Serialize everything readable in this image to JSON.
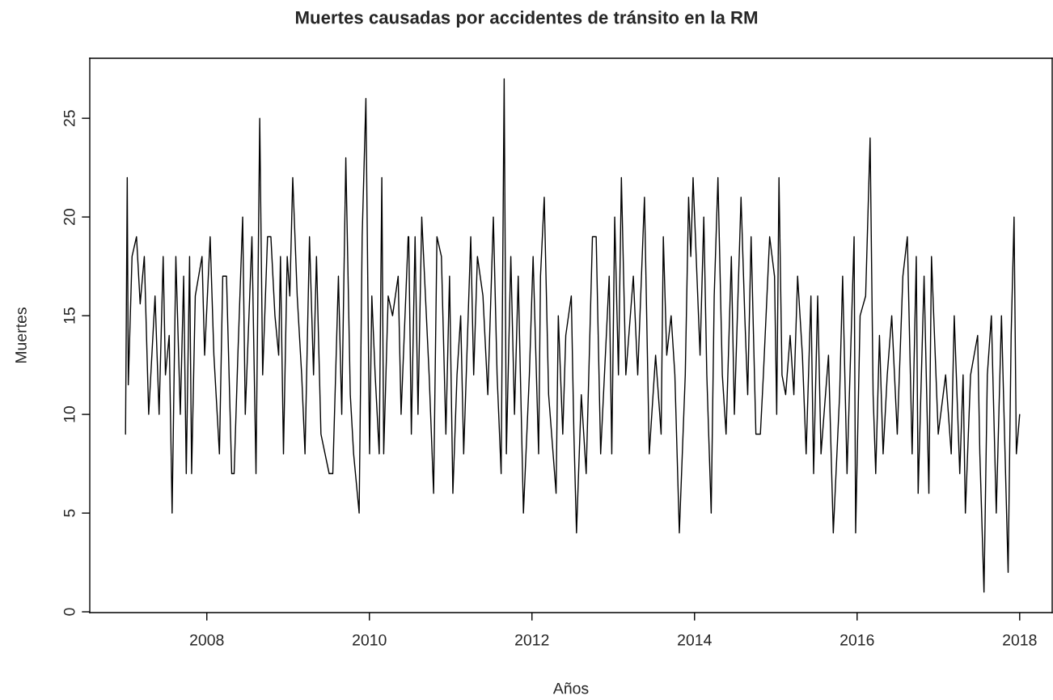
{
  "chart_data": {
    "type": "line",
    "title": "Muertes causadas por accidentes de tránsito en la RM",
    "xlabel": "Años",
    "ylabel": "Muertes",
    "x": [
      2007.0,
      2007.021,
      2007.034,
      2007.08,
      2007.135,
      2007.18,
      2007.231,
      2007.285,
      2007.363,
      2007.413,
      2007.463,
      2007.491,
      2007.537,
      2007.573,
      2007.619,
      2007.674,
      2007.715,
      2007.747,
      2007.788,
      2007.813,
      2007.858,
      2007.941,
      2007.973,
      2008.041,
      2008.087,
      2008.155,
      2008.196,
      2008.242,
      2008.306,
      2008.336,
      2008.382,
      2008.441,
      2008.473,
      2008.555,
      2008.605,
      2008.651,
      2008.687,
      2008.747,
      2008.788,
      2008.838,
      2008.884,
      2008.906,
      2008.943,
      2008.989,
      2009.021,
      2009.057,
      2009.112,
      2009.167,
      2009.208,
      2009.263,
      2009.313,
      2009.349,
      2009.404,
      2009.505,
      2009.55,
      2009.619,
      2009.66,
      2009.71,
      2009.765,
      2009.806,
      2009.874,
      2009.911,
      2009.957,
      2010.002,
      2010.03,
      2010.071,
      2010.121,
      2010.153,
      2010.176,
      2010.231,
      2010.285,
      2010.354,
      2010.39,
      2010.477,
      2010.484,
      2010.516,
      2010.562,
      2010.598,
      2010.644,
      2010.735,
      2010.79,
      2010.831,
      2010.886,
      2010.941,
      2010.986,
      2011.027,
      2011.078,
      2011.123,
      2011.16,
      2011.247,
      2011.283,
      2011.329,
      2011.397,
      2011.457,
      2011.525,
      2011.571,
      2011.621,
      2011.658,
      2011.685,
      2011.74,
      2011.785,
      2011.831,
      2011.895,
      2011.968,
      2012.014,
      2012.082,
      2012.105,
      2012.151,
      2012.205,
      2012.297,
      2012.324,
      2012.379,
      2012.416,
      2012.484,
      2012.516,
      2012.548,
      2012.607,
      2012.667,
      2012.744,
      2012.79,
      2012.845,
      2012.95,
      2012.982,
      2013.018,
      2013.064,
      2013.1,
      2013.155,
      2013.247,
      2013.301,
      2013.384,
      2013.443,
      2013.521,
      2013.589,
      2013.616,
      2013.658,
      2013.712,
      2013.758,
      2013.813,
      2013.886,
      2013.927,
      2013.954,
      2013.982,
      2014.068,
      2014.114,
      2014.151,
      2014.205,
      2014.242,
      2014.288,
      2014.342,
      2014.388,
      2014.453,
      2014.49,
      2014.572,
      2014.618,
      2014.654,
      2014.696,
      2014.755,
      2014.81,
      2014.847,
      2014.924,
      2014.984,
      2015.011,
      2015.039,
      2015.076,
      2015.121,
      2015.176,
      2015.222,
      2015.268,
      2015.327,
      2015.373,
      2015.432,
      2015.465,
      2015.515,
      2015.556,
      2015.648,
      2015.707,
      2015.785,
      2015.822,
      2015.876,
      2015.963,
      2015.982,
      2016.037,
      2016.105,
      2016.16,
      2016.197,
      2016.229,
      2016.275,
      2016.32,
      2016.371,
      2016.426,
      2016.494,
      2016.563,
      2016.618,
      2016.677,
      2016.728,
      2016.751,
      2016.824,
      2016.883,
      2016.915,
      2016.998,
      2017.089,
      2017.158,
      2017.195,
      2017.263,
      2017.304,
      2017.332,
      2017.396,
      2017.483,
      2017.51,
      2017.561,
      2017.602,
      2017.652,
      2017.712,
      2017.776,
      2017.858,
      2017.895,
      2017.931,
      2017.959,
      2018.0
    ],
    "series": [
      {
        "color": "#000000",
        "values": [
          9,
          22,
          11.5,
          18,
          19,
          15.6,
          18,
          10,
          16,
          10,
          18,
          12,
          14,
          5,
          18,
          10,
          17,
          7,
          18,
          7,
          16,
          18,
          13,
          19,
          13,
          8,
          17,
          17,
          7,
          7,
          13,
          20,
          10,
          19,
          7,
          25,
          12,
          19,
          19,
          15,
          13,
          18,
          8,
          18,
          16,
          22,
          16,
          12,
          8,
          19,
          12,
          18,
          9,
          7,
          7,
          17,
          10,
          23,
          11,
          8,
          5,
          19,
          26,
          8,
          16,
          12,
          8,
          22,
          8,
          16,
          15,
          17,
          10,
          19,
          19,
          9,
          19,
          10,
          20,
          12,
          6,
          19,
          18,
          9,
          17,
          6,
          12,
          15,
          8,
          19,
          12,
          18,
          16,
          11,
          20,
          12,
          7,
          27,
          8,
          18,
          10,
          17,
          5,
          12,
          18,
          8,
          17,
          21,
          11,
          6,
          15,
          9,
          14,
          16,
          9,
          4,
          11,
          7,
          19,
          19,
          8,
          17,
          8,
          20,
          12,
          22,
          12,
          17,
          12,
          21,
          8,
          13,
          9,
          19,
          13,
          15,
          12,
          4,
          12,
          21,
          18,
          22,
          13,
          20,
          12,
          5,
          16,
          22,
          12,
          9,
          18,
          10,
          21,
          15,
          11,
          19,
          9,
          9,
          12,
          19,
          17,
          10,
          22,
          12,
          11,
          14,
          11,
          17,
          13,
          8,
          16,
          7,
          16,
          8,
          13,
          4,
          11,
          17,
          7,
          19,
          4,
          15,
          16,
          24,
          11,
          7,
          14,
          8,
          12,
          15,
          9,
          17,
          19,
          8,
          18,
          6,
          17,
          6,
          18,
          9,
          12,
          8,
          15,
          7,
          12,
          5,
          12,
          14,
          8,
          1,
          12,
          15,
          5,
          15,
          2,
          14,
          20,
          8,
          10
        ]
      }
    ],
    "xlim": [
      2006.56,
      2018.4
    ],
    "ylim": [
      -0.04,
      28.04
    ],
    "xticks": [
      2008,
      2010,
      2012,
      2014,
      2016,
      2018
    ],
    "yticks": [
      0,
      5,
      10,
      15,
      20,
      25
    ],
    "grid": false,
    "legend": false,
    "line_style": "solid",
    "marker": "none"
  }
}
